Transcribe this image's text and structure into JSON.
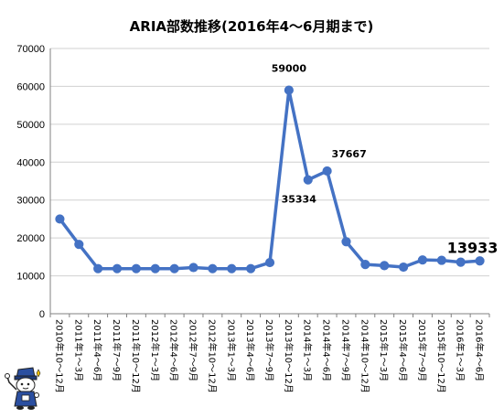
{
  "chart_data": {
    "type": "line",
    "title": "ARIA部数推移(2016年4～6月期まで)",
    "xlabel": "",
    "ylabel": "",
    "ylim": [
      0,
      70000
    ],
    "yticks": [
      0,
      10000,
      20000,
      30000,
      40000,
      50000,
      60000,
      70000
    ],
    "grid": true,
    "legend": "none",
    "categories": [
      "2010年10～12月",
      "2011年1～3月",
      "2011年4～6月",
      "2011年7～9月",
      "2011年10～12月",
      "2012年1～3月",
      "2012年4～6月",
      "2012年7～9月",
      "2012年10～12月",
      "2013年1～3月",
      "2013年4～6月",
      "2013年7～9月",
      "2013年10～12月",
      "2014年1～3月",
      "2014年4～6月",
      "2014年7～9月",
      "2014年10～12月",
      "2015年1～3月",
      "2015年4～6月",
      "2015年7～9月",
      "2015年10～12月",
      "2016年1～3月",
      "2016年4～6月"
    ],
    "series": [
      {
        "values": [
          25000,
          18300,
          11900,
          11900,
          11900,
          11900,
          11900,
          12200,
          11900,
          11900,
          11900,
          13500,
          59000,
          35334,
          37667,
          19000,
          13000,
          12700,
          12300,
          14200,
          14100,
          13600,
          13933
        ],
        "color": "#4472C4"
      }
    ],
    "data_labels": [
      {
        "index": 12,
        "text": "59000",
        "size": "normal",
        "position": "above"
      },
      {
        "index": 13,
        "text": "35334",
        "size": "normal",
        "position": "below"
      },
      {
        "index": 14,
        "text": "37667",
        "size": "normal",
        "position": "above-right"
      },
      {
        "index": 22,
        "text": "13933",
        "size": "large",
        "position": "above-left"
      }
    ]
  },
  "colors": {
    "series": "#4472C4",
    "grid": "#d0d0d0",
    "axis": "#808080"
  },
  "mascot_icon": "cartoon-mascot-icon"
}
